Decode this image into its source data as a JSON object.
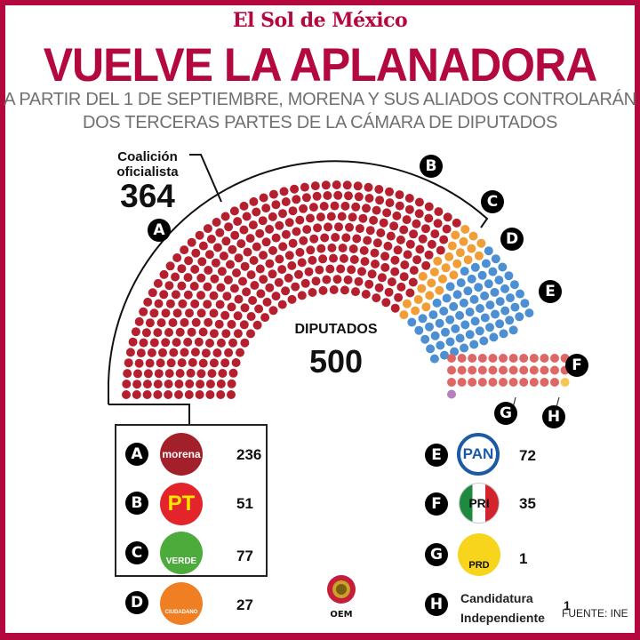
{
  "header": {
    "masthead": "El Sol de México",
    "headline": "VUELVE LA APLANADORA",
    "subtitle_line1": "A PARTIR DEL 1 DE SEPTIEMBRE, MORENA Y SUS ALIADOS CONTROLARÁN",
    "subtitle_line2": "DOS TERCERAS PARTES DE LA CÁMARA DE DIPUTADOS"
  },
  "coalition": {
    "label": "Coalición oficialista",
    "total": "364"
  },
  "center": {
    "label": "DIPUTADOS",
    "total": "500"
  },
  "parties": [
    {
      "key": "A",
      "name": "morena",
      "logo_text": "morena",
      "seats": 236,
      "color": "#b51f2e",
      "logo_bg": "#a3202a",
      "logo_fg": "#ffffff"
    },
    {
      "key": "B",
      "name": "PT",
      "logo_text": "PT",
      "seats": 51,
      "color": "#b51f2e",
      "logo_bg": "#e3242b",
      "logo_fg": "#ffe500"
    },
    {
      "key": "C",
      "name": "VERDE",
      "logo_text": "VERDE",
      "seats": 77,
      "color": "#b51f2e",
      "logo_bg": "#4dab3c",
      "logo_fg": "#ffffff"
    },
    {
      "key": "D",
      "name": "MOVIMIENTO CIUDADANO",
      "logo_text": "CIUDADANO",
      "seats": 27,
      "color": "#f19d38",
      "logo_bg": "#f07f23",
      "logo_fg": "#ffffff"
    },
    {
      "key": "E",
      "name": "PAN",
      "logo_text": "PAN",
      "seats": 72,
      "color": "#4c8fd2",
      "logo_bg": "#ffffff",
      "logo_fg": "#1c5aa6"
    },
    {
      "key": "F",
      "name": "PRI",
      "logo_text": "PRI",
      "seats": 35,
      "color": "#de6766",
      "logo_bg": "#ffffff",
      "logo_fg": "#1b1b1b"
    },
    {
      "key": "G",
      "name": "PRD",
      "logo_text": "PRD",
      "seats": 1,
      "color": "#f6c752",
      "logo_bg": "#f7d51d",
      "logo_fg": "#1b1b1b"
    },
    {
      "key": "H",
      "name": "Candidatura Independiente",
      "logo_text": "",
      "seats": 1,
      "color": "#b57fc0",
      "logo_bg": "",
      "logo_fg": ""
    }
  ],
  "independent_label_line1": "Candidatura",
  "independent_label_line2": "Independiente",
  "independent_seats": "1",
  "source": "FUENTE: INE",
  "footer_logo": "OEM",
  "chart_data": {
    "type": "parliament",
    "title": "VUELVE LA APLANADORA",
    "subtitle": "A partir del 1 de septiembre, Morena y sus aliados controlarán dos terceras partes de la Cámara de Diputados",
    "total": 500,
    "categories": [
      "Morena",
      "PT",
      "Verde",
      "Movimiento Ciudadano",
      "PAN",
      "PRI",
      "PRD",
      "Candidatura Independiente"
    ],
    "values": [
      236,
      51,
      77,
      27,
      72,
      35,
      1,
      1
    ],
    "colors": [
      "#b51f2e",
      "#b51f2e",
      "#b51f2e",
      "#f19d38",
      "#4c8fd2",
      "#de6766",
      "#f6c752",
      "#b57fc0"
    ],
    "groups": [
      {
        "name": "Coalición oficialista",
        "members": [
          "Morena",
          "PT",
          "Verde"
        ],
        "total": 364
      }
    ],
    "source": "INE"
  }
}
